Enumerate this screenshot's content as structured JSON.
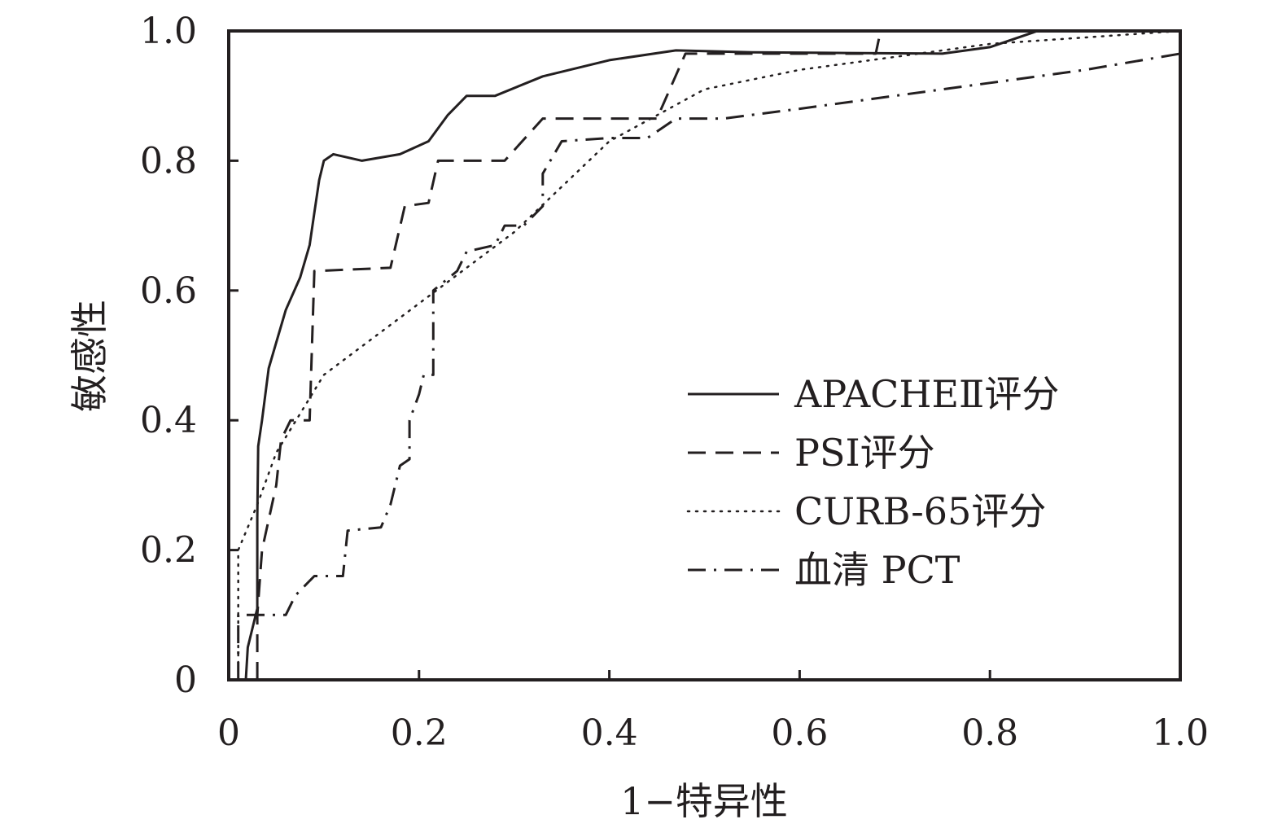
{
  "chart_data": {
    "type": "line",
    "xlabel": "1−特异性",
    "ylabel": "敏感性",
    "xlim": [
      0,
      1
    ],
    "ylim": [
      0,
      1
    ],
    "x_ticks": [
      "0",
      "0.2",
      "0.4",
      "0.6",
      "0.8",
      "1.0"
    ],
    "y_ticks": [
      "0",
      "0.2",
      "0.4",
      "0.6",
      "0.8",
      "1.0"
    ],
    "grid": false,
    "legend_position": "center-right",
    "series": [
      {
        "name": "APACHEⅡ评分",
        "style": "solid",
        "color": "#231f20",
        "points": [
          [
            0.018,
            0
          ],
          [
            0.02,
            0.05
          ],
          [
            0.03,
            0.11
          ],
          [
            0.03,
            0.25
          ],
          [
            0.031,
            0.36
          ],
          [
            0.035,
            0.4
          ],
          [
            0.042,
            0.48
          ],
          [
            0.05,
            0.52
          ],
          [
            0.06,
            0.57
          ],
          [
            0.075,
            0.62
          ],
          [
            0.085,
            0.67
          ],
          [
            0.09,
            0.72
          ],
          [
            0.095,
            0.77
          ],
          [
            0.1,
            0.8
          ],
          [
            0.11,
            0.81
          ],
          [
            0.14,
            0.8
          ],
          [
            0.18,
            0.81
          ],
          [
            0.21,
            0.83
          ],
          [
            0.23,
            0.87
          ],
          [
            0.25,
            0.9
          ],
          [
            0.28,
            0.9
          ],
          [
            0.33,
            0.93
          ],
          [
            0.4,
            0.955
          ],
          [
            0.47,
            0.97
          ],
          [
            0.55,
            0.967
          ],
          [
            0.65,
            0.966
          ],
          [
            0.75,
            0.965
          ],
          [
            0.8,
            0.975
          ],
          [
            0.85,
            1.0
          ],
          [
            1.0,
            1.0
          ]
        ]
      },
      {
        "name": "PSI评分",
        "style": "dashed",
        "color": "#231f20",
        "points": [
          [
            0.03,
            0
          ],
          [
            0.03,
            0.1
          ],
          [
            0.035,
            0.2
          ],
          [
            0.05,
            0.3
          ],
          [
            0.055,
            0.37
          ],
          [
            0.065,
            0.4
          ],
          [
            0.085,
            0.4
          ],
          [
            0.09,
            0.63
          ],
          [
            0.17,
            0.635
          ],
          [
            0.185,
            0.73
          ],
          [
            0.21,
            0.735
          ],
          [
            0.22,
            0.8
          ],
          [
            0.29,
            0.8
          ],
          [
            0.33,
            0.865
          ],
          [
            0.45,
            0.865
          ],
          [
            0.48,
            0.965
          ],
          [
            0.55,
            0.965
          ],
          [
            0.65,
            0.965
          ],
          [
            0.68,
            0.965
          ],
          [
            0.685,
            1.0
          ],
          [
            1.0,
            1.0
          ]
        ]
      },
      {
        "name": "CURB-65评分",
        "style": "dotted",
        "color": "#231f20",
        "points": [
          [
            0.01,
            0
          ],
          [
            0.01,
            0.2
          ],
          [
            0.03,
            0.27
          ],
          [
            0.05,
            0.35
          ],
          [
            0.1,
            0.47
          ],
          [
            0.2,
            0.58
          ],
          [
            0.3,
            0.69
          ],
          [
            0.4,
            0.83
          ],
          [
            0.45,
            0.87
          ],
          [
            0.5,
            0.91
          ],
          [
            0.6,
            0.94
          ],
          [
            0.7,
            0.96
          ],
          [
            0.8,
            0.98
          ],
          [
            0.9,
            0.99
          ],
          [
            1.0,
            1.0
          ]
        ]
      },
      {
        "name": "血清 PCT",
        "style": "dashdot",
        "color": "#231f20",
        "points": [
          [
            0.01,
            0
          ],
          [
            0.01,
            0.1
          ],
          [
            0.02,
            0.1
          ],
          [
            0.03,
            0.1
          ],
          [
            0.06,
            0.1
          ],
          [
            0.07,
            0.13
          ],
          [
            0.09,
            0.16
          ],
          [
            0.12,
            0.16
          ],
          [
            0.125,
            0.23
          ],
          [
            0.16,
            0.235
          ],
          [
            0.17,
            0.27
          ],
          [
            0.18,
            0.33
          ],
          [
            0.19,
            0.34
          ],
          [
            0.19,
            0.4
          ],
          [
            0.2,
            0.44
          ],
          [
            0.205,
            0.47
          ],
          [
            0.215,
            0.47
          ],
          [
            0.215,
            0.6
          ],
          [
            0.24,
            0.63
          ],
          [
            0.25,
            0.66
          ],
          [
            0.28,
            0.67
          ],
          [
            0.29,
            0.7
          ],
          [
            0.31,
            0.7
          ],
          [
            0.33,
            0.73
          ],
          [
            0.33,
            0.78
          ],
          [
            0.35,
            0.83
          ],
          [
            0.4,
            0.835
          ],
          [
            0.44,
            0.835
          ],
          [
            0.47,
            0.865
          ],
          [
            0.52,
            0.865
          ],
          [
            0.6,
            0.88
          ],
          [
            0.7,
            0.9
          ],
          [
            0.8,
            0.92
          ],
          [
            0.9,
            0.94
          ],
          [
            1.0,
            0.965
          ]
        ]
      }
    ]
  }
}
